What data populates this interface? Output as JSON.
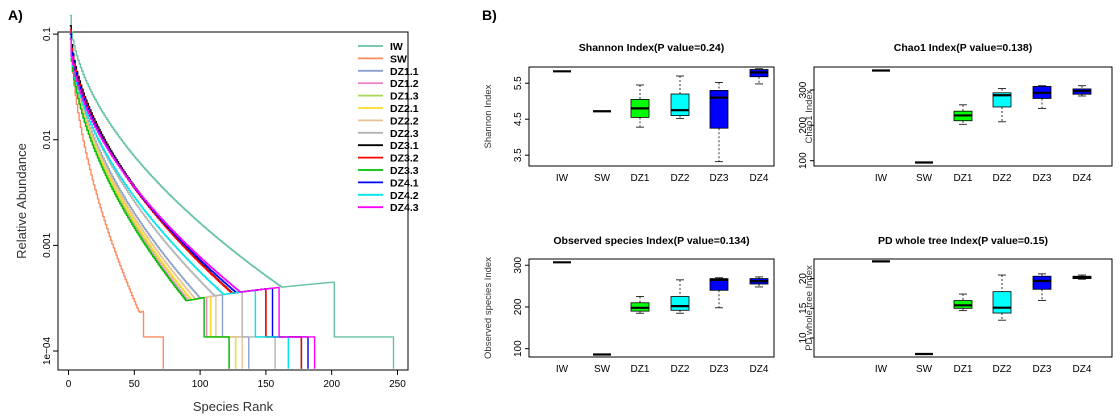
{
  "panel_a": {
    "label": "A)",
    "chart_data": {
      "type": "line",
      "xlabel": "Species Rank",
      "ylabel": "Relative Abundance",
      "xlim": [
        -8,
        258
      ],
      "ylim_log10": [
        -4.18,
        -0.98
      ],
      "y_scale": "log",
      "xticks": [
        0,
        50,
        100,
        150,
        200,
        250
      ],
      "yticks": [
        {
          "value": 0.1,
          "label": "0.1"
        },
        {
          "value": 0.01,
          "label": "0.01"
        },
        {
          "value": 0.001,
          "label": "0.001"
        },
        {
          "value": 0.0001,
          "label": "1e−04"
        }
      ],
      "grid": false,
      "legend_position": "top-right",
      "series": [
        {
          "name": "IW",
          "color": "#66c2a5",
          "max_rank": 247,
          "mid_rank": 202,
          "initial": 0.15
        },
        {
          "name": "SW",
          "color": "#fc8d62",
          "max_rank": 72,
          "mid_rank": 57,
          "initial": 0.12
        },
        {
          "name": "DZ1.1",
          "color": "#8da0cb",
          "max_rank": 137,
          "mid_rank": 117,
          "initial": 0.1
        },
        {
          "name": "DZ1.2",
          "color": "#e78ac3",
          "max_rank": 122,
          "mid_rank": 105,
          "initial": 0.09
        },
        {
          "name": "DZ1.3",
          "color": "#a6d854",
          "max_rank": 127,
          "mid_rank": 108,
          "initial": 0.09
        },
        {
          "name": "DZ2.1",
          "color": "#ffd92f",
          "max_rank": 127,
          "mid_rank": 108,
          "initial": 0.1
        },
        {
          "name": "DZ2.2",
          "color": "#e5c494",
          "max_rank": 132,
          "mid_rank": 112,
          "initial": 0.1
        },
        {
          "name": "DZ2.3",
          "color": "#b3b3b3",
          "max_rank": 157,
          "mid_rank": 132,
          "initial": 0.1
        },
        {
          "name": "DZ3.1",
          "color": "#000000",
          "max_rank": 177,
          "mid_rank": 150,
          "initial": 0.12
        },
        {
          "name": "DZ3.2",
          "color": "#ff0000",
          "max_rank": 177,
          "mid_rank": 150,
          "initial": 0.11
        },
        {
          "name": "DZ3.3",
          "color": "#00c000",
          "max_rank": 122,
          "mid_rank": 103,
          "initial": 0.09
        },
        {
          "name": "DZ4.1",
          "color": "#0000ff",
          "max_rank": 182,
          "mid_rank": 155,
          "initial": 0.1
        },
        {
          "name": "DZ4.2",
          "color": "#00e5ee",
          "max_rank": 167,
          "mid_rank": 142,
          "initial": 0.09
        },
        {
          "name": "DZ4.3",
          "color": "#ff00ff",
          "max_rank": 187,
          "mid_rank": 160,
          "initial": 0.09
        }
      ]
    }
  },
  "panel_b": {
    "label": "B)",
    "chart_data": [
      {
        "type": "boxplot",
        "title": "Shannon Index(P value=0.24)",
        "ylabel": "Shannon Index",
        "ylim": [
          3.2,
          5.95
        ],
        "yticks": [
          {
            "value": 3.5,
            "label": "3.5"
          },
          {
            "value": 4.5,
            "label": "4.5"
          },
          {
            "value": 5.5,
            "label": "5.5"
          }
        ],
        "categories": [
          "IW",
          "SW",
          "DZ1",
          "DZ2",
          "DZ3",
          "DZ4"
        ],
        "boxes": [
          {
            "group": "IW",
            "color": "#ffffff",
            "whislo": 5.83,
            "q1": 5.83,
            "med": 5.83,
            "q3": 5.83,
            "whishi": 5.83
          },
          {
            "group": "SW",
            "color": "#ffffff",
            "whislo": 4.72,
            "q1": 4.72,
            "med": 4.72,
            "q3": 4.72,
            "whishi": 4.72
          },
          {
            "group": "DZ1",
            "color": "#00ff00",
            "whislo": 4.28,
            "q1": 4.55,
            "med": 4.8,
            "q3": 5.05,
            "whishi": 5.45
          },
          {
            "group": "DZ2",
            "color": "#00ffff",
            "whislo": 4.52,
            "q1": 4.6,
            "med": 4.75,
            "q3": 5.2,
            "whishi": 5.7
          },
          {
            "group": "DZ3",
            "color": "#0000ff",
            "whislo": 3.32,
            "q1": 4.25,
            "med": 5.1,
            "q3": 5.3,
            "whishi": 5.52
          },
          {
            "group": "DZ4",
            "color": "#0000ff",
            "whislo": 5.48,
            "q1": 5.68,
            "med": 5.8,
            "q3": 5.88,
            "whishi": 5.9
          }
        ]
      },
      {
        "type": "boxplot",
        "title": "Chao1 Index(P value=0.138)",
        "ylabel": "Chao1 Index",
        "ylim": [
          85,
          365
        ],
        "yticks": [
          {
            "value": 100,
            "label": "100"
          },
          {
            "value": 200,
            "label": "200"
          },
          {
            "value": 300,
            "label": "300"
          }
        ],
        "categories": [
          "IW",
          "SW",
          "DZ1",
          "DZ2",
          "DZ3",
          "DZ4"
        ],
        "boxes": [
          {
            "group": "IW",
            "color": "#ffffff",
            "whislo": 355,
            "q1": 355,
            "med": 355,
            "q3": 355,
            "whishi": 355
          },
          {
            "group": "SW",
            "color": "#ffffff",
            "whislo": 95,
            "q1": 95,
            "med": 95,
            "q3": 95,
            "whishi": 95
          },
          {
            "group": "DZ1",
            "color": "#00ff00",
            "whislo": 203,
            "q1": 213,
            "med": 228,
            "q3": 240,
            "whishi": 258
          },
          {
            "group": "DZ2",
            "color": "#00ffff",
            "whislo": 210,
            "q1": 252,
            "med": 285,
            "q3": 292,
            "whishi": 304
          },
          {
            "group": "DZ3",
            "color": "#0000ff",
            "whislo": 248,
            "q1": 276,
            "med": 292,
            "q3": 310,
            "whishi": 312
          },
          {
            "group": "DZ4",
            "color": "#0000ff",
            "whislo": 283,
            "q1": 288,
            "med": 297,
            "q3": 303,
            "whishi": 312
          }
        ]
      },
      {
        "type": "boxplot",
        "title": "Observed species Index(P value=0.134)",
        "ylabel": "Observed species Index",
        "ylim": [
          80,
          315
        ],
        "yticks": [
          {
            "value": 100,
            "label": "100"
          },
          {
            "value": 200,
            "label": "200"
          },
          {
            "value": 300,
            "label": "300"
          }
        ],
        "categories": [
          "IW",
          "SW",
          "DZ1",
          "DZ2",
          "DZ3",
          "DZ4"
        ],
        "boxes": [
          {
            "group": "IW",
            "color": "#ffffff",
            "whislo": 307,
            "q1": 307,
            "med": 307,
            "q3": 307,
            "whishi": 307
          },
          {
            "group": "SW",
            "color": "#ffffff",
            "whislo": 86,
            "q1": 86,
            "med": 86,
            "q3": 86,
            "whishi": 86
          },
          {
            "group": "DZ1",
            "color": "#00ff00",
            "whislo": 185,
            "q1": 190,
            "med": 198,
            "q3": 210,
            "whishi": 225
          },
          {
            "group": "DZ2",
            "color": "#00ffff",
            "whislo": 185,
            "q1": 192,
            "med": 202,
            "q3": 225,
            "whishi": 265
          },
          {
            "group": "DZ3",
            "color": "#0000ff",
            "whislo": 198,
            "q1": 240,
            "med": 265,
            "q3": 268,
            "whishi": 270
          },
          {
            "group": "DZ4",
            "color": "#0000ff",
            "whislo": 248,
            "q1": 255,
            "med": 262,
            "q3": 268,
            "whishi": 272
          }
        ]
      },
      {
        "type": "boxplot",
        "title": "PD whole tree Index(P value=0.15)",
        "ylabel": "PD whole tree Index",
        "ylim": [
          6.8,
          23.3
        ],
        "yticks": [
          {
            "value": 10,
            "label": "10"
          },
          {
            "value": 15,
            "label": "15"
          },
          {
            "value": 20,
            "label": "20"
          }
        ],
        "categories": [
          "IW",
          "SW",
          "DZ1",
          "DZ2",
          "DZ3",
          "DZ4"
        ],
        "boxes": [
          {
            "group": "IW",
            "color": "#ffffff",
            "whislo": 22.9,
            "q1": 22.9,
            "med": 22.9,
            "q3": 22.9,
            "whishi": 22.9
          },
          {
            "group": "SW",
            "color": "#ffffff",
            "whislo": 7.3,
            "q1": 7.3,
            "med": 7.3,
            "q3": 7.3,
            "whishi": 7.3
          },
          {
            "group": "DZ1",
            "color": "#00ff00",
            "whislo": 14.6,
            "q1": 15.0,
            "med": 15.5,
            "q3": 16.3,
            "whishi": 17.4
          },
          {
            "group": "DZ2",
            "color": "#00ffff",
            "whislo": 13.0,
            "q1": 14.2,
            "med": 15.1,
            "q3": 17.8,
            "whishi": 20.6
          },
          {
            "group": "DZ3",
            "color": "#0000ff",
            "whislo": 16.3,
            "q1": 18.2,
            "med": 19.6,
            "q3": 20.4,
            "whishi": 20.8
          },
          {
            "group": "DZ4",
            "color": "#0000ff",
            "whislo": 19.9,
            "q1": 20.0,
            "med": 20.2,
            "q3": 20.4,
            "whishi": 20.6
          }
        ]
      }
    ]
  }
}
